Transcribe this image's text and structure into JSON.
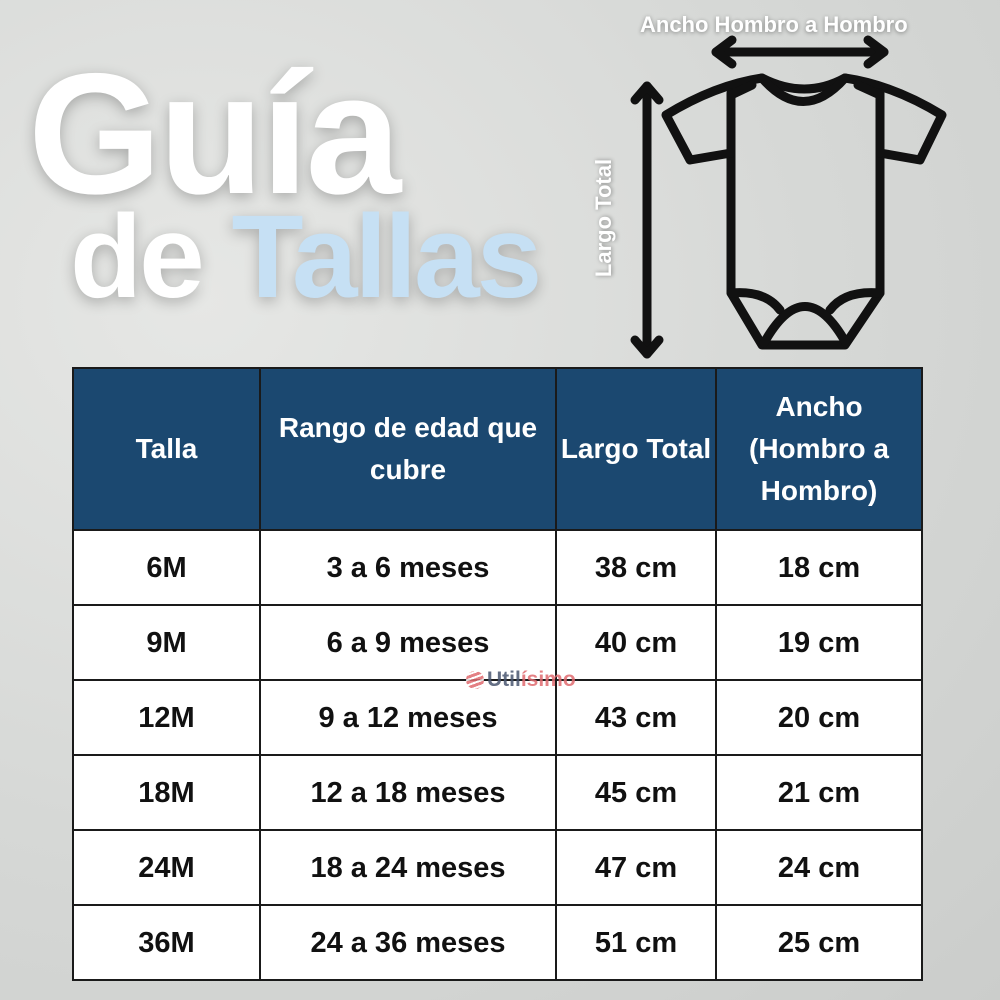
{
  "title": {
    "line1": "Guía",
    "line2_prefix": "de",
    "line2_accent": "Tallas"
  },
  "diagram": {
    "width_label": "Ancho Hombro a Hombro",
    "length_label": "Largo Total",
    "icon": "baby-onesie-icon"
  },
  "table": {
    "headers": [
      "Talla",
      "Rango de edad que cubre",
      "Largo Total",
      "Ancho (Hombro a Hombro)"
    ],
    "rows": [
      [
        "6M",
        "3 a 6 meses",
        "38 cm",
        "18 cm"
      ],
      [
        "9M",
        "6 a 9 meses",
        "40 cm",
        "19 cm"
      ],
      [
        "12M",
        "9 a 12 meses",
        "43 cm",
        "20 cm"
      ],
      [
        "18M",
        "12 a 18 meses",
        "45 cm",
        "21 cm"
      ],
      [
        "24M",
        "18 a 24 meses",
        "47 cm",
        "24 cm"
      ],
      [
        "36M",
        "24 a 36 meses",
        "51 cm",
        "25 cm"
      ]
    ]
  },
  "watermark": {
    "part1": "Util",
    "part2": "ísimo"
  },
  "colors": {
    "header_bg": "#1b4870",
    "accent": "#c6e0f4"
  }
}
